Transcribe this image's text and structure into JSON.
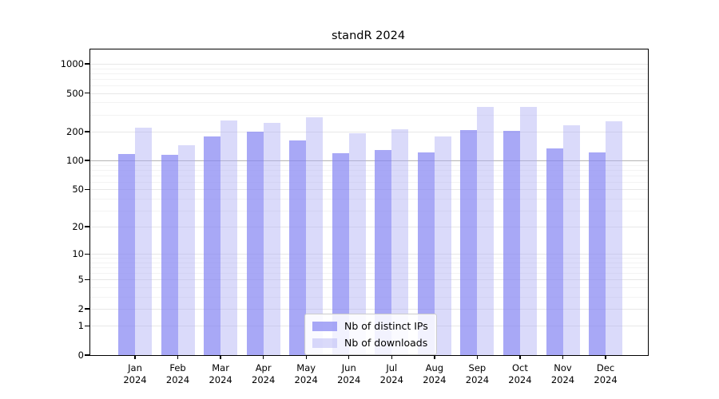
{
  "title": "standR 2024",
  "axes": {
    "y_tick_labels": [
      "0",
      "1",
      "2",
      "5",
      "10",
      "20",
      "50",
      "100",
      "200",
      "500",
      "1000"
    ],
    "x_year_label": "2024"
  },
  "colors": {
    "ips_bar": "#a8a8f6",
    "downloads_bar": "#dadafa",
    "grid_major": "#e7e7e7",
    "grid_emphasis": "#b4b4b4",
    "spine": "#000000"
  },
  "chart_data": {
    "type": "bar",
    "title": "standR 2024",
    "categories": [
      "Jan",
      "Feb",
      "Mar",
      "Apr",
      "May",
      "Jun",
      "Jul",
      "Aug",
      "Sep",
      "Oct",
      "Nov",
      "Dec"
    ],
    "year": "2024",
    "series": [
      {
        "name": "Nb of distinct IPs",
        "values": [
          116,
          114,
          178,
          198,
          162,
          119,
          129,
          122,
          206,
          202,
          134,
          122
        ]
      },
      {
        "name": "Nb of downloads",
        "values": [
          218,
          145,
          260,
          246,
          281,
          192,
          211,
          178,
          362,
          360,
          232,
          255
        ]
      }
    ],
    "xlabel": "",
    "ylabel": "",
    "yscale": "log1p",
    "ylim": [
      0,
      1407
    ],
    "yticks": [
      0,
      1,
      2,
      5,
      10,
      20,
      50,
      100,
      200,
      500,
      1000
    ],
    "minor_yticks": [
      3,
      4,
      6,
      7,
      8,
      9,
      30,
      40,
      60,
      70,
      80,
      90,
      300,
      400,
      600,
      700,
      800,
      900
    ],
    "grid": true,
    "legend_position": "lower center"
  }
}
